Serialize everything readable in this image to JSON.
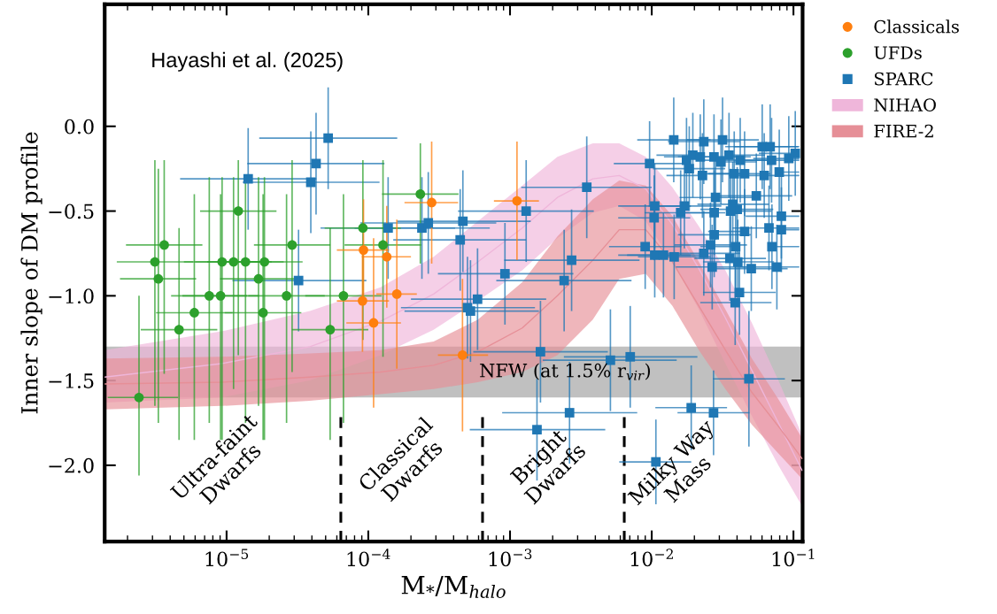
{
  "chart_data": {
    "type": "scatter",
    "xlabel": "M$_{*}$/M$_{halo}$",
    "ylabel": "Inner slope of DM profile",
    "log": "x",
    "xlim": [
      1.38e-06,
      0.116
    ],
    "ylim": [
      -2.45,
      0.72
    ],
    "xticks": [
      {
        "value": 1e-05,
        "label": "10$^{−5}$"
      },
      {
        "value": 0.0001,
        "label": "10$^{−4}$"
      },
      {
        "value": 0.001,
        "label": "10$^{−3}$"
      },
      {
        "value": 0.01,
        "label": "10$^{−2}$"
      },
      {
        "value": 0.1,
        "label": "10$^{−1}$"
      }
    ],
    "yticks": [
      {
        "value": 0,
        "label": "0.0"
      },
      {
        "value": -0.5,
        "label": "−0.5"
      },
      {
        "value": -1.0,
        "label": "−1.0"
      },
      {
        "value": -1.5,
        "label": "−1.5"
      },
      {
        "value": -2.0,
        "label": "−2.0"
      }
    ],
    "grid": false,
    "legend": "top right",
    "annotations": [
      "Hayashi et al. (2025)",
      "Ultra-faint\nDwarfs",
      "Classical\nDwarfs",
      "Bright\nDwarfs",
      "Milky Way\nMass"
    ],
    "bands": [
      {
        "axis": "y",
        "from": -1.3,
        "to": -1.6,
        "label": "NFW (at 1.5% r$_{vir}$)",
        "color": "#8c8c8c"
      }
    ],
    "ref_lines": [
      {
        "axis": "x",
        "value": 6.4e-05,
        "color": "#000000",
        "line_style": "dashed"
      },
      {
        "axis": "x",
        "value": 0.00064,
        "color": "#000000",
        "line_style": "dashed"
      },
      {
        "axis": "x",
        "value": 0.0064,
        "color": "#000000",
        "line_style": "dashed"
      }
    ],
    "series": [
      {
        "name": "Classicals",
        "marker": "circle",
        "color": "#ff7f0e",
        "x": [
          0.00028,
          0.00112,
          9.25e-05,
          0.000135,
          9.1e-05,
          0.000159,
          0.000109,
          0.000462
        ],
        "values": [
          -0.45,
          -0.44,
          -0.73,
          -0.77,
          -1.03,
          -0.99,
          -1.16,
          -1.35
        ],
        "errors": [
          0.36,
          0.35,
          0.3,
          0.3,
          0.3,
          0.44,
          0.5,
          0.45
        ],
        "xerrors": [
          [
            0.00018,
            0.00043
          ],
          [
            0.00077,
            0.0016
          ],
          [
            6e-05,
            0.00014
          ],
          [
            9e-05,
            0.0002
          ],
          [
            6e-05,
            0.00014
          ],
          [
            0.000114,
            0.00022
          ],
          [
            7e-05,
            0.00017
          ],
          [
            0.00031,
            0.0007
          ]
        ]
      },
      {
        "name": "UFDs",
        "marker": "circle",
        "color": "#2ca02c",
        "x": [
          3.63e-06,
          3.12e-06,
          3.3e-06,
          1.21e-05,
          9.3e-06,
          1.12e-05,
          1.36e-05,
          1.85e-05,
          2.9e-05,
          1.68e-05,
          7.55e-06,
          9.07e-06,
          2.65e-05,
          6.68e-05,
          5.92e-06,
          1.81e-05,
          4.62e-06,
          5.38e-05,
          9.16e-05,
          2.41e-06,
          0.000233,
          0.000127
        ],
        "values": [
          -0.7,
          -0.8,
          -0.9,
          -0.5,
          -0.8,
          -0.8,
          -0.8,
          -0.8,
          -0.7,
          -0.9,
          -1.0,
          -1.0,
          -1.0,
          -1.0,
          -1.1,
          -1.1,
          -1.2,
          -1.2,
          -0.6,
          -1.6,
          -0.4,
          -0.7
        ],
        "errors": [
          [
            -1.46,
            -0.2
          ],
          [
            -1.65,
            -0.2
          ],
          [
            -1.75,
            -0.25
          ],
          [
            -1.35,
            -0.2
          ],
          [
            -1.85,
            -0.3
          ],
          [
            -1.55,
            -0.3
          ],
          [
            -1.75,
            -0.3
          ],
          [
            -1.85,
            -0.3
          ],
          [
            -1.45,
            -0.2
          ],
          [
            -1.65,
            -0.3
          ],
          [
            -1.75,
            -0.3
          ],
          [
            -1.85,
            -0.4
          ],
          [
            -1.75,
            -0.4
          ],
          [
            -1.75,
            -0.4
          ],
          [
            -1.85,
            -0.4
          ],
          [
            -1.85,
            -0.4
          ],
          [
            -1.85,
            -0.6
          ],
          [
            -1.85,
            -0.6
          ],
          [
            -1.26,
            -0.2
          ],
          [
            -2.06,
            -1.0
          ],
          [
            -0.81,
            -0.1
          ],
          [
            -1.36,
            -0.2
          ]
        ],
        "xerrors": [
          [
            1.95e-06,
            6.75e-06
          ],
          [
            1.68e-06,
            5.8e-06
          ],
          [
            1.77e-06,
            6.1e-06
          ],
          [
            6.5e-06,
            2.25e-05
          ],
          [
            5e-06,
            1.73e-05
          ],
          [
            6e-06,
            2.08e-05
          ],
          [
            7.3e-06,
            2.53e-05
          ],
          [
            9.9e-06,
            3.44e-05
          ],
          [
            1.56e-05,
            5.4e-05
          ],
          [
            9e-06,
            3.12e-05
          ],
          [
            4.06e-06,
            1.4e-05
          ],
          [
            4.88e-06,
            1.69e-05
          ],
          [
            1.42e-05,
            4.93e-05
          ],
          [
            3.59e-05,
            0.000124
          ],
          [
            3.18e-06,
            1.1e-05
          ],
          [
            9.7e-06,
            3.37e-05
          ],
          [
            2.48e-06,
            8.6e-06
          ],
          [
            2.89e-05,
            0.0001
          ],
          [
            4.92e-05,
            0.00017
          ],
          [
            1.45e-06,
            4.55e-06
          ],
          [
            0.000125,
            0.000433
          ],
          [
            6.8e-05,
            0.000236
          ]
        ]
      },
      {
        "name": "SPARC",
        "marker": "square",
        "color": "#1f77b4",
        "x": [
          5.21e-05,
          4.28e-05,
          3.93e-05,
          1.42e-05,
          3.22e-05,
          0.000138,
          0.000239,
          0.000265,
          0.000465,
          0.000445,
          0.0013,
          0.00348,
          0.00272,
          0.000921,
          0.00241,
          0.00059,
          0.000501,
          0.000526,
          0.00164,
          0.00511,
          0.00705,
          0.00263,
          0.00155,
          0.0485,
          0.019,
          0.0273,
          0.0107,
          0.0143,
          0.0233,
          0.0316,
          0.00966,
          0.0176,
          0.0195,
          0.022,
          0.0275,
          0.0308,
          0.0351,
          0.0421,
          0.0602,
          0.0685,
          0.0701,
          0.0927,
          0.103,
          0.0184,
          0.0228,
          0.0382,
          0.0452,
          0.0622,
          0.0794,
          0.0547,
          0.0282,
          0.0105,
          0.017,
          0.016,
          0.0373,
          0.0401,
          0.0276,
          0.036,
          0.0104,
          0.0822,
          0.0672,
          0.0822,
          0.0452,
          0.0276,
          0.00899,
          0.026,
          0.0391,
          0.0705,
          0.0233,
          0.0105,
          0.0121,
          0.0144,
          0.0356,
          0.0405,
          0.0267,
          0.0504,
          0.0764,
          0.0416,
          0.0388
        ],
        "values": [
          -0.07,
          -0.22,
          -0.33,
          -0.31,
          -0.91,
          -0.6,
          -0.6,
          -0.57,
          -0.56,
          -0.67,
          -0.5,
          -0.36,
          -0.79,
          -0.87,
          -0.91,
          -1.02,
          -1.07,
          -1.09,
          -1.33,
          -1.38,
          -1.36,
          -1.69,
          -1.79,
          -1.49,
          -1.66,
          -1.69,
          -1.98,
          -0.08,
          -0.09,
          -0.08,
          -0.22,
          -0.2,
          -0.17,
          -0.18,
          -0.18,
          -0.21,
          -0.17,
          -0.2,
          -0.12,
          -0.12,
          -0.2,
          -0.19,
          -0.16,
          -0.25,
          -0.29,
          -0.28,
          -0.28,
          -0.29,
          -0.27,
          -0.41,
          -0.42,
          -0.47,
          -0.47,
          -0.51,
          -0.46,
          -0.49,
          -0.51,
          -0.5,
          -0.54,
          -0.53,
          -0.6,
          -0.61,
          -0.62,
          -0.64,
          -0.71,
          -0.7,
          -0.71,
          -0.71,
          -0.75,
          -0.76,
          -0.76,
          -0.77,
          -0.78,
          -0.8,
          -0.83,
          -0.84,
          -0.83,
          -0.98,
          -1.04
        ],
        "errors": [
          0.3,
          0.3,
          0.3,
          0.3,
          0.3,
          0.3,
          0.3,
          0.3,
          0.3,
          0.3,
          0.3,
          0.3,
          0.3,
          0.3,
          0.3,
          0.3,
          0.3,
          0.3,
          0.3,
          0.3,
          0.3,
          0.3,
          0.3,
          0.4,
          0.25,
          0.25,
          0.25,
          0.25,
          0.25,
          0.25,
          0.25,
          0.25,
          0.25,
          0.25,
          0.25,
          0.25,
          0.25,
          0.25,
          0.25,
          0.25,
          0.25,
          0.25,
          0.25,
          0.25,
          0.25,
          0.25,
          0.25,
          0.25,
          0.25,
          0.25,
          0.25,
          0.25,
          0.25,
          0.25,
          0.25,
          0.25,
          0.25,
          0.25,
          0.25,
          0.25,
          0.25,
          0.25,
          0.25,
          0.25,
          0.25,
          0.25,
          0.25,
          0.25,
          0.25,
          0.25,
          0.25,
          0.25,
          0.25,
          0.25,
          0.25,
          0.25,
          0.25,
          0.25,
          0.25
        ],
        "xerrors": [
          [
            1.7e-05,
            0.00016
          ],
          [
            1.4e-05,
            0.00013
          ],
          [
            1.3e-05,
            0.00012
          ],
          [
            4.7e-06,
            4.3e-05
          ],
          [
            1.1e-05,
            9.7e-05
          ],
          [
            4.6e-05,
            0.00041
          ],
          [
            8e-05,
            0.00072
          ],
          [
            8.8e-05,
            0.0008
          ],
          [
            0.00016,
            0.0014
          ],
          [
            0.00015,
            0.0013
          ],
          [
            0.00043,
            0.0039
          ],
          [
            0.0012,
            0.01
          ],
          [
            0.00091,
            0.0082
          ],
          [
            0.00031,
            0.0028
          ],
          [
            0.0008,
            0.0072
          ],
          [
            0.0002,
            0.0018
          ],
          [
            0.00017,
            0.0015
          ],
          [
            0.00018,
            0.0016
          ],
          [
            0.00055,
            0.0049
          ],
          [
            0.0017,
            0.015
          ],
          [
            0.0024,
            0.021
          ],
          [
            0.00088,
            0.0079
          ],
          [
            0.00052,
            0.0047
          ],
          [
            0.027,
            0.087
          ],
          [
            0.0106,
            0.034
          ],
          [
            0.0152,
            0.049
          ],
          [
            0.0059,
            0.019
          ],
          [
            0.0079,
            0.026
          ],
          [
            0.013,
            0.042
          ],
          [
            0.0176,
            0.057
          ],
          [
            0.0054,
            0.0174
          ],
          [
            0.0176,
            0.0176
          ],
          [
            0.0108,
            0.0195
          ],
          [
            0.0122,
            0.04
          ],
          [
            0.0153,
            0.05
          ],
          [
            0.0308,
            0.055
          ],
          [
            0.0351,
            0.063
          ],
          [
            0.023,
            0.076
          ],
          [
            0.033,
            0.108
          ],
          [
            0.038,
            0.11
          ],
          [
            0.039,
            0.11
          ],
          [
            0.052,
            0.11
          ],
          [
            0.057,
            0.11
          ],
          [
            0.0102,
            0.033
          ],
          [
            0.0127,
            0.0228
          ],
          [
            0.021,
            0.069
          ],
          [
            0.025,
            0.0452
          ],
          [
            0.035,
            0.11
          ],
          [
            0.0794,
            0.11
          ],
          [
            0.03,
            0.098
          ],
          [
            0.0157,
            0.051
          ],
          [
            0.0058,
            0.0189
          ],
          [
            0.0095,
            0.031
          ],
          [
            0.0089,
            0.029
          ],
          [
            0.021,
            0.067
          ],
          [
            0.022,
            0.072
          ],
          [
            0.0153,
            0.033
          ],
          [
            0.034,
            0.07
          ],
          [
            0.0058,
            0.0187
          ],
          [
            0.046,
            0.11
          ],
          [
            0.037,
            0.11
          ],
          [
            0.0822,
            0.11
          ],
          [
            0.025,
            0.0452
          ],
          [
            0.0153,
            0.05
          ],
          [
            0.005,
            0.0162
          ],
          [
            0.0145,
            0.047
          ],
          [
            0.022,
            0.0391
          ],
          [
            0.0705,
            0.11
          ],
          [
            0.013,
            0.042
          ],
          [
            0.0058,
            0.0189
          ],
          [
            0.0067,
            0.022
          ],
          [
            0.008,
            0.026
          ],
          [
            0.02,
            0.064
          ],
          [
            0.023,
            0.073
          ],
          [
            0.0148,
            0.048
          ],
          [
            0.028,
            0.091
          ],
          [
            0.042,
            0.11
          ],
          [
            0.023,
            0.075
          ],
          [
            0.022,
            0.07
          ]
        ]
      },
      {
        "name": "NIHAO",
        "type": "line",
        "color": "#efb6da",
        "values": [
          -1.48,
          -1.4,
          -1.3,
          -1.15,
          -0.99,
          -0.8,
          -0.6,
          -0.42,
          -0.31,
          -0.29,
          -0.37,
          -0.58,
          -0.84,
          -1.13,
          -1.44,
          -1.75,
          -2.03
        ],
        "x": [
          1.38e-06,
          9.2e-06,
          3.87e-05,
          0.000122,
          0.000289,
          0.000593,
          0.00122,
          0.00216,
          0.00384,
          0.0059,
          0.00908,
          0.014,
          0.0215,
          0.0331,
          0.0509,
          0.0783,
          0.115
        ],
        "upper": [
          -1.32,
          -1.21,
          -1.09,
          -0.95,
          -0.77,
          -0.56,
          -0.35,
          -0.18,
          -0.1,
          -0.1,
          -0.18,
          -0.36,
          -0.59,
          -0.85,
          -1.16,
          -1.5,
          -1.82
        ],
        "lower": [
          -1.63,
          -1.6,
          -1.5,
          -1.35,
          -1.2,
          -1.03,
          -0.85,
          -0.66,
          -0.51,
          -0.47,
          -0.56,
          -0.8,
          -1.08,
          -1.4,
          -1.71,
          -2.0,
          -2.24
        ]
      },
      {
        "name": "FIRE-2",
        "type": "line",
        "color": "#e68f97",
        "values": [
          -1.52,
          -1.51,
          -1.48,
          -1.45,
          -1.41,
          -1.33,
          -1.19,
          -1.0,
          -0.79,
          -0.61,
          -0.61,
          -0.8,
          -1.06,
          -1.32,
          -1.57,
          -1.77,
          -1.96
        ],
        "x": [
          1.38e-06,
          9.2e-06,
          3.87e-05,
          0.000122,
          0.000289,
          0.000593,
          0.00122,
          0.00216,
          0.00384,
          0.0059,
          0.00908,
          0.014,
          0.0215,
          0.0331,
          0.0509,
          0.0783,
          0.115
        ],
        "upper": [
          -1.37,
          -1.36,
          -1.34,
          -1.32,
          -1.27,
          -1.14,
          -0.92,
          -0.65,
          -0.43,
          -0.32,
          -0.35,
          -0.53,
          -0.8,
          -1.08,
          -1.37,
          -1.61,
          -1.84
        ],
        "lower": [
          -1.67,
          -1.65,
          -1.62,
          -1.58,
          -1.55,
          -1.51,
          -1.45,
          -1.35,
          -1.14,
          -0.9,
          -0.87,
          -1.06,
          -1.32,
          -1.55,
          -1.76,
          -1.93,
          -2.08
        ]
      }
    ]
  }
}
